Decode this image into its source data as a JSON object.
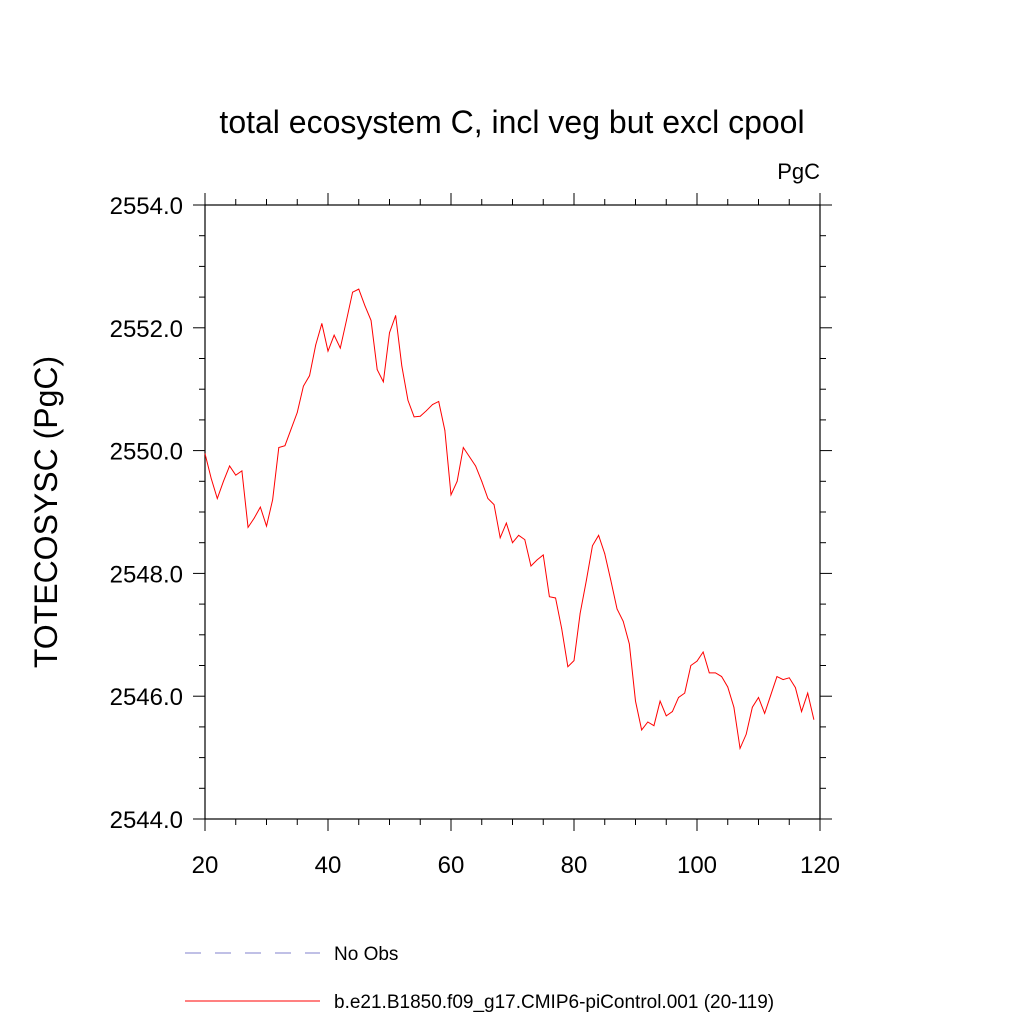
{
  "chart_data": {
    "type": "line",
    "title": "total ecosystem C, incl veg but excl cpool",
    "units": "PgC",
    "ylabel": "TOTECOSYSC  (PgC)",
    "xlabel": "",
    "xlim": [
      20,
      120
    ],
    "ylim": [
      2544.0,
      2554.0
    ],
    "x_ticks": [
      20,
      40,
      60,
      80,
      100,
      120
    ],
    "x_tick_labels": [
      "20",
      "40",
      "60",
      "80",
      "100",
      "120"
    ],
    "y_ticks": [
      2544.0,
      2546.0,
      2548.0,
      2550.0,
      2552.0,
      2554.0
    ],
    "y_tick_labels": [
      "2544.0",
      "2546.0",
      "2548.0",
      "2550.0",
      "2552.0",
      "2554.0"
    ],
    "legend": [
      {
        "label": "No Obs",
        "color": "#8080cc",
        "style": "dashed"
      },
      {
        "label": "b.e21.B1850.f09_g17.CMIP6-piControl.001 (20-119)",
        "color": "#ff0000",
        "style": "solid"
      }
    ],
    "series": [
      {
        "name": "b.e21.B1850.f09_g17.CMIP6-piControl.001 (20-119)",
        "color": "#ff0000",
        "x": [
          20,
          21,
          22,
          23,
          24,
          25,
          26,
          27,
          28,
          29,
          30,
          31,
          32,
          33,
          34,
          35,
          36,
          37,
          38,
          39,
          40,
          41,
          42,
          43,
          44,
          45,
          46,
          47,
          48,
          49,
          50,
          51,
          52,
          53,
          54,
          55,
          56,
          57,
          58,
          59,
          60,
          61,
          62,
          63,
          64,
          65,
          66,
          67,
          68,
          69,
          70,
          71,
          72,
          73,
          74,
          75,
          76,
          77,
          78,
          79,
          80,
          81,
          82,
          83,
          84,
          85,
          86,
          87,
          88,
          89,
          90,
          91,
          92,
          93,
          94,
          95,
          96,
          97,
          98,
          99,
          100,
          101,
          102,
          103,
          104,
          105,
          106,
          107,
          108,
          109,
          110,
          111,
          112,
          113,
          114,
          115,
          116,
          117,
          118,
          119
        ],
        "y": [
          2549.95,
          2549.55,
          2549.22,
          2549.5,
          2549.75,
          2549.6,
          2549.67,
          2548.75,
          2548.9,
          2549.08,
          2548.77,
          2549.2,
          2550.05,
          2550.08,
          2550.35,
          2550.62,
          2551.05,
          2551.22,
          2551.72,
          2552.07,
          2551.62,
          2551.88,
          2551.67,
          2552.12,
          2552.58,
          2552.63,
          2552.36,
          2552.12,
          2551.32,
          2551.12,
          2551.92,
          2552.2,
          2551.38,
          2550.82,
          2550.55,
          2550.56,
          2550.65,
          2550.75,
          2550.8,
          2550.33,
          2549.28,
          2549.5,
          2550.05,
          2549.9,
          2549.75,
          2549.5,
          2549.22,
          2549.12,
          2548.58,
          2548.82,
          2548.5,
          2548.62,
          2548.55,
          2548.12,
          2548.22,
          2548.3,
          2547.62,
          2547.6,
          2547.1,
          2546.48,
          2546.58,
          2547.35,
          2547.88,
          2548.45,
          2548.62,
          2548.32,
          2547.88,
          2547.42,
          2547.22,
          2546.85,
          2545.92,
          2545.45,
          2545.58,
          2545.52,
          2545.92,
          2545.68,
          2545.75,
          2545.98,
          2546.05,
          2546.5,
          2546.57,
          2546.72,
          2546.38,
          2546.38,
          2546.32,
          2546.15,
          2545.82,
          2545.15,
          2545.38,
          2545.82,
          2545.98,
          2545.72,
          2546.02,
          2546.32,
          2546.27,
          2546.3,
          2546.14,
          2545.75,
          2546.05,
          2545.62
        ]
      }
    ]
  }
}
